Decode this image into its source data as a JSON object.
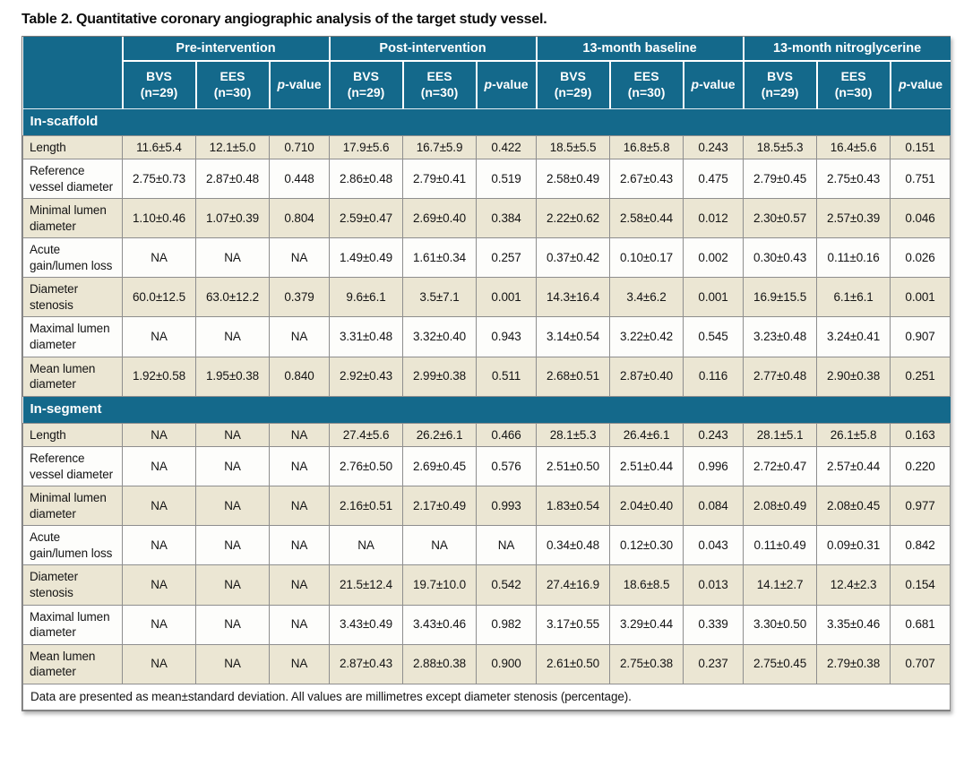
{
  "title": "Table 2. Quantitative coronary angiographic analysis of the target study vessel.",
  "table": {
    "groups": [
      "Pre-intervention",
      "Post-intervention",
      "13-month baseline",
      "13-month nitroglycerine"
    ],
    "col_headers": {
      "bvs": "BVS\n(n=29)",
      "ees": "EES\n(n=30)",
      "p_italic": "p",
      "p_rest": "-value"
    },
    "sections": [
      {
        "label": "In-scaffold",
        "rows": [
          {
            "label": "Length",
            "values": [
              "11.6±5.4",
              "12.1±5.0",
              "0.710",
              "17.9±5.6",
              "16.7±5.9",
              "0.422",
              "18.5±5.5",
              "16.8±5.8",
              "0.243",
              "18.5±5.3",
              "16.4±5.6",
              "0.151"
            ]
          },
          {
            "label": "Reference vessel diameter",
            "values": [
              "2.75±0.73",
              "2.87±0.48",
              "0.448",
              "2.86±0.48",
              "2.79±0.41",
              "0.519",
              "2.58±0.49",
              "2.67±0.43",
              "0.475",
              "2.79±0.45",
              "2.75±0.43",
              "0.751"
            ]
          },
          {
            "label": "Minimal lumen diameter",
            "values": [
              "1.10±0.46",
              "1.07±0.39",
              "0.804",
              "2.59±0.47",
              "2.69±0.40",
              "0.384",
              "2.22±0.62",
              "2.58±0.44",
              "0.012",
              "2.30±0.57",
              "2.57±0.39",
              "0.046"
            ]
          },
          {
            "label": "Acute gain/lumen loss",
            "values": [
              "NA",
              "NA",
              "NA",
              "1.49±0.49",
              "1.61±0.34",
              "0.257",
              "0.37±0.42",
              "0.10±0.17",
              "0.002",
              "0.30±0.43",
              "0.11±0.16",
              "0.026"
            ]
          },
          {
            "label": "Diameter stenosis",
            "values": [
              "60.0±12.5",
              "63.0±12.2",
              "0.379",
              "9.6±6.1",
              "3.5±7.1",
              "0.001",
              "14.3±16.4",
              "3.4±6.2",
              "0.001",
              "16.9±15.5",
              "6.1±6.1",
              "0.001"
            ]
          },
          {
            "label": "Maximal lumen diameter",
            "values": [
              "NA",
              "NA",
              "NA",
              "3.31±0.48",
              "3.32±0.40",
              "0.943",
              "3.14±0.54",
              "3.22±0.42",
              "0.545",
              "3.23±0.48",
              "3.24±0.41",
              "0.907"
            ]
          },
          {
            "label": "Mean lumen diameter",
            "values": [
              "1.92±0.58",
              "1.95±0.38",
              "0.840",
              "2.92±0.43",
              "2.99±0.38",
              "0.511",
              "2.68±0.51",
              "2.87±0.40",
              "0.116",
              "2.77±0.48",
              "2.90±0.38",
              "0.251"
            ]
          }
        ]
      },
      {
        "label": "In-segment",
        "rows": [
          {
            "label": "Length",
            "values": [
              "NA",
              "NA",
              "NA",
              "27.4±5.6",
              "26.2±6.1",
              "0.466",
              "28.1±5.3",
              "26.4±6.1",
              "0.243",
              "28.1±5.1",
              "26.1±5.8",
              "0.163"
            ]
          },
          {
            "label": "Reference vessel diameter",
            "values": [
              "NA",
              "NA",
              "NA",
              "2.76±0.50",
              "2.69±0.45",
              "0.576",
              "2.51±0.50",
              "2.51±0.44",
              "0.996",
              "2.72±0.47",
              "2.57±0.44",
              "0.220"
            ]
          },
          {
            "label": "Minimal lumen diameter",
            "values": [
              "NA",
              "NA",
              "NA",
              "2.16±0.51",
              "2.17±0.49",
              "0.993",
              "1.83±0.54",
              "2.04±0.40",
              "0.084",
              "2.08±0.49",
              "2.08±0.45",
              "0.977"
            ]
          },
          {
            "label": "Acute gain/lumen loss",
            "values": [
              "NA",
              "NA",
              "NA",
              "NA",
              "NA",
              "NA",
              "0.34±0.48",
              "0.12±0.30",
              "0.043",
              "0.11±0.49",
              "0.09±0.31",
              "0.842"
            ]
          },
          {
            "label": "Diameter stenosis",
            "values": [
              "NA",
              "NA",
              "NA",
              "21.5±12.4",
              "19.7±10.0",
              "0.542",
              "27.4±16.9",
              "18.6±8.5",
              "0.013",
              "14.1±2.7",
              "12.4±2.3",
              "0.154"
            ]
          },
          {
            "label": "Maximal lumen diameter",
            "values": [
              "NA",
              "NA",
              "NA",
              "3.43±0.49",
              "3.43±0.46",
              "0.982",
              "3.17±0.55",
              "3.29±0.44",
              "0.339",
              "3.30±0.50",
              "3.35±0.46",
              "0.681"
            ]
          },
          {
            "label": "Mean lumen diameter",
            "values": [
              "NA",
              "NA",
              "NA",
              "2.87±0.43",
              "2.88±0.38",
              "0.900",
              "2.61±0.50",
              "2.75±0.38",
              "0.237",
              "2.75±0.45",
              "2.79±0.38",
              "0.707"
            ]
          }
        ]
      }
    ],
    "footnote": "Data are presented as mean±standard deviation. All values are millimetres except diameter stenosis (percentage).",
    "colors": {
      "header_teal": "#14698b",
      "row_shade": "#ebe6d3",
      "row_plain": "#fdfdfb",
      "grid": "#8e8e8e"
    }
  }
}
